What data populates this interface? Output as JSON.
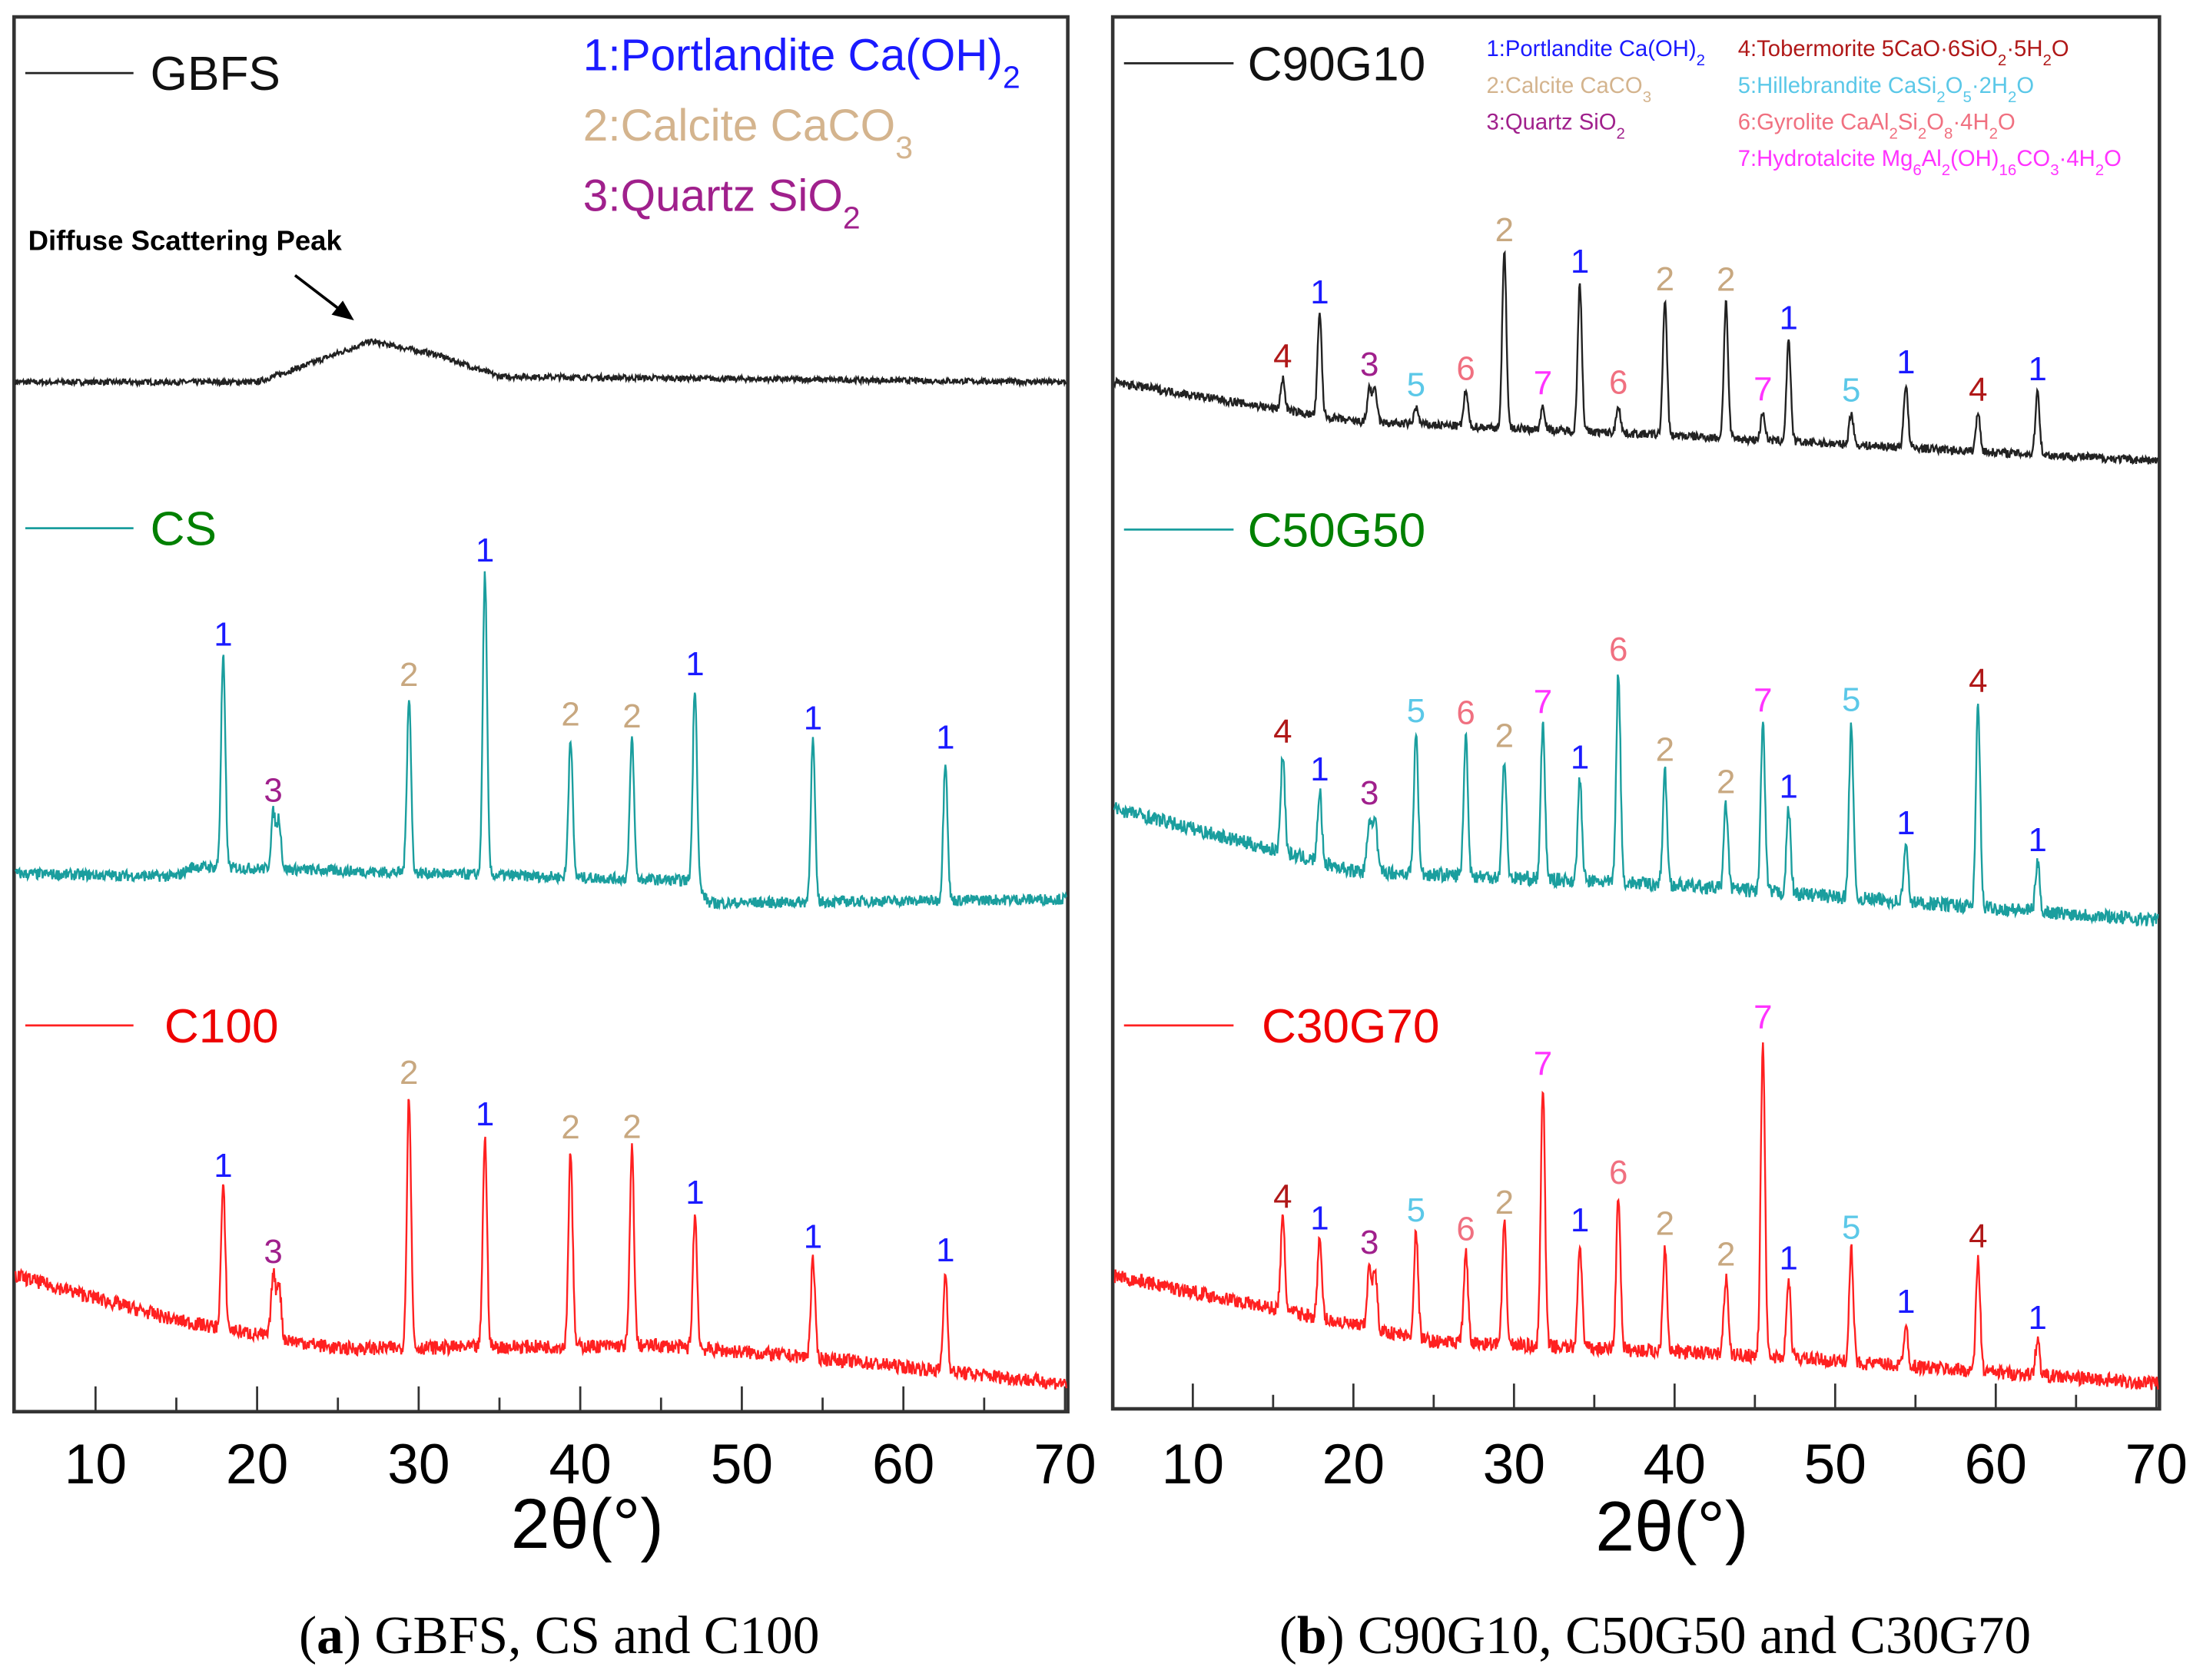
{
  "chart_data": [
    {
      "type": "line",
      "panel": "a",
      "caption_label": "a",
      "caption_text": ") GBFS, CS and C100",
      "xlabel": "2θ(°)",
      "ylabel": "",
      "xlim": [
        5,
        70
      ],
      "ylim_au": [
        0,
        993
      ],
      "xticks": [
        10,
        20,
        30,
        40,
        50,
        60,
        70
      ],
      "annotation": "Diffuse Scattering Peak",
      "phase_legend": [
        {
          "color": "#1a1aff",
          "segments": [
            [
              "1:Portlandite Ca(OH)",
              ""
            ],
            [
              "2",
              "sub"
            ]
          ]
        },
        {
          "color": "#d4b48e",
          "segments": [
            [
              "2:Calcite CaCO",
              ""
            ],
            [
              "3",
              "sub"
            ]
          ]
        },
        {
          "color": "#a0208c",
          "segments": [
            [
              "3:Quartz SiO",
              ""
            ],
            [
              "2",
              "sub"
            ]
          ]
        }
      ],
      "series": [
        {
          "name": "GBFS",
          "color": "#222222",
          "label_color": "#111111",
          "noise": 2,
          "baseline": [
            [
              5,
              733
            ],
            [
              20,
              733
            ],
            [
              23,
              745
            ],
            [
              27,
              762
            ],
            [
              31,
              753
            ],
            [
              35,
              737
            ],
            [
              70,
              733
            ]
          ],
          "peaks": []
        },
        {
          "name": "CS",
          "color": "#1a9e9e",
          "label_color": "#008000",
          "noise": 4,
          "baseline": [
            [
              5,
              383
            ],
            [
              15,
              381
            ],
            [
              16,
              388
            ],
            [
              47,
              378
            ],
            [
              48,
              362
            ],
            [
              70,
              365
            ]
          ],
          "peaks": [
            [
              17.9,
              150,
              1
            ],
            [
              21.0,
              40,
              3
            ],
            [
              29.4,
              125,
              2
            ],
            [
              34.1,
              215,
              1
            ],
            [
              39.4,
              100,
              2
            ],
            [
              43.2,
              100,
              2
            ],
            [
              47.1,
              140,
              1
            ],
            [
              54.4,
              115,
              1
            ],
            [
              62.6,
              100,
              1
            ]
          ]
        },
        {
          "name": "C100",
          "color": "#ff2020",
          "label_color": "#ee0000",
          "noise": 5,
          "baseline": [
            [
              5,
              97
            ],
            [
              15,
              65
            ],
            [
              25,
              45
            ],
            [
              45,
              47
            ],
            [
              55,
              38
            ],
            [
              70,
              20
            ]
          ],
          "peaks": [
            [
              17.9,
              100,
              1
            ],
            [
              21.0,
              45,
              3
            ],
            [
              29.4,
              180,
              2
            ],
            [
              34.1,
              150,
              1
            ],
            [
              39.4,
              140,
              2
            ],
            [
              43.2,
              140,
              2
            ],
            [
              47.1,
              95,
              1
            ],
            [
              54.4,
              70,
              1
            ],
            [
              62.6,
              70,
              1
            ]
          ]
        }
      ]
    },
    {
      "type": "line",
      "panel": "b",
      "caption_label": "b",
      "caption_text": ") C90G10, C50G50 and C30G70",
      "xlabel": "2θ(°)",
      "ylabel": "",
      "xlim": [
        5,
        70
      ],
      "ylim_au": [
        0,
        993
      ],
      "xticks": [
        10,
        20,
        30,
        40,
        50,
        60,
        70
      ],
      "phase_legend": [
        {
          "color": "#1a1aff",
          "segments": [
            [
              "1:Portlandite Ca(OH)",
              ""
            ],
            [
              "2",
              "sub"
            ]
          ]
        },
        {
          "color": "#d4b48e",
          "segments": [
            [
              "2:Calcite CaCO",
              ""
            ],
            [
              "3",
              "sub"
            ]
          ]
        },
        {
          "color": "#a0208c",
          "segments": [
            [
              "3:Quartz SiO",
              ""
            ],
            [
              "2",
              "sub"
            ]
          ]
        },
        {
          "color": "#b01818",
          "segments": [
            [
              "4:Tobermorite 5CaO·6SiO",
              ""
            ],
            [
              "2",
              "sub"
            ],
            [
              "·5H",
              ""
            ],
            [
              "2",
              "sub"
            ],
            [
              "O",
              ""
            ]
          ]
        },
        {
          "color": "#5bc8e8",
          "segments": [
            [
              "5:Hillebrandite CaSi",
              ""
            ],
            [
              "2",
              "sub"
            ],
            [
              "O",
              ""
            ],
            [
              "5",
              "sub"
            ],
            [
              "·2H",
              ""
            ],
            [
              "2",
              "sub"
            ],
            [
              "O",
              ""
            ]
          ]
        },
        {
          "color": "#f07080",
          "segments": [
            [
              "6:Gyrolite  CaAl",
              ""
            ],
            [
              "2",
              "sub"
            ],
            [
              "Si",
              ""
            ],
            [
              "2",
              "sub"
            ],
            [
              "O",
              ""
            ],
            [
              "8",
              "sub"
            ],
            [
              "·4H",
              ""
            ],
            [
              "2",
              "sub"
            ],
            [
              "O",
              ""
            ]
          ]
        },
        {
          "color": "#ff33ff",
          "segments": [
            [
              "7:Hydrotalcite Mg",
              ""
            ],
            [
              "6",
              "sub"
            ],
            [
              "Al",
              ""
            ],
            [
              "2",
              "sub"
            ],
            [
              "(OH)",
              ""
            ],
            [
              "16",
              "sub"
            ],
            [
              "CO",
              ""
            ],
            [
              "3",
              "sub"
            ],
            [
              "·4H",
              ""
            ],
            [
              "2",
              "sub"
            ],
            [
              "O",
              ""
            ]
          ]
        }
      ],
      "series": [
        {
          "name": "C90G10",
          "color": "#222222",
          "label_color": "#111111",
          "noise": 3,
          "baseline": [
            [
              5,
              733
            ],
            [
              20,
              705
            ],
            [
              40,
              695
            ],
            [
              70,
              677
            ]
          ],
          "peaks": [
            [
              15.6,
              22,
              4
            ],
            [
              17.9,
              72,
              1
            ],
            [
              21.0,
              25,
              3
            ],
            [
              23.9,
              12,
              5
            ],
            [
              27.0,
              25,
              6
            ],
            [
              29.4,
              125,
              2
            ],
            [
              31.8,
              17,
              7
            ],
            [
              34.1,
              105,
              1
            ],
            [
              36.5,
              20,
              6
            ],
            [
              39.4,
              95,
              2
            ],
            [
              43.2,
              97,
              2
            ],
            [
              45.5,
              20,
              7
            ],
            [
              47.1,
              72,
              1
            ],
            [
              51.0,
              23,
              5
            ],
            [
              54.4,
              45,
              1
            ],
            [
              58.9,
              28,
              4
            ],
            [
              62.6,
              45,
              1
            ]
          ]
        },
        {
          "name": "C50G50",
          "color": "#1a9e9e",
          "label_color": "#008000",
          "noise": 5,
          "baseline": [
            [
              5,
              430
            ],
            [
              20,
              385
            ],
            [
              40,
              375
            ],
            [
              70,
              350
            ]
          ],
          "peaks": [
            [
              15.6,
              70,
              4
            ],
            [
              17.9,
              50,
              1
            ],
            [
              21.0,
              40,
              3
            ],
            [
              23.9,
              100,
              5
            ],
            [
              27.0,
              100,
              6
            ],
            [
              29.4,
              85,
              2
            ],
            [
              31.8,
              110,
              7
            ],
            [
              34.1,
              72,
              1
            ],
            [
              36.5,
              150,
              6
            ],
            [
              39.4,
              80,
              2
            ],
            [
              43.2,
              60,
              2
            ],
            [
              45.5,
              120,
              7
            ],
            [
              47.1,
              60,
              1
            ],
            [
              51.0,
              125,
              5
            ],
            [
              54.4,
              40,
              1
            ],
            [
              58.9,
              145,
              4
            ],
            [
              62.6,
              35,
              1
            ]
          ]
        },
        {
          "name": "C30G70",
          "color": "#ff2020",
          "label_color": "#ee0000",
          "noise": 5,
          "baseline": [
            [
              5,
              97
            ],
            [
              25,
              50
            ],
            [
              45,
              40
            ],
            [
              70,
              20
            ]
          ],
          "peaks": [
            [
              15.6,
              65,
              4
            ],
            [
              17.9,
              55,
              1
            ],
            [
              21.0,
              45,
              3
            ],
            [
              23.9,
              75,
              5
            ],
            [
              27.0,
              65,
              6
            ],
            [
              29.4,
              85,
              2
            ],
            [
              31.8,
              185,
              7
            ],
            [
              34.1,
              75,
              1
            ],
            [
              36.5,
              110,
              6
            ],
            [
              39.4,
              75,
              2
            ],
            [
              43.2,
              55,
              2
            ],
            [
              45.5,
              225,
              7
            ],
            [
              47.1,
              55,
              1
            ],
            [
              51.0,
              80,
              5
            ],
            [
              54.4,
              30,
              1
            ],
            [
              58.9,
              80,
              4
            ],
            [
              62.6,
              25,
              1
            ]
          ]
        }
      ]
    }
  ],
  "label_colors": {
    "1": "#1a1aff",
    "2": "#c8a880",
    "3": "#a0208c",
    "4": "#b01818",
    "5": "#5bc8e8",
    "6": "#f07080",
    "7": "#ff33ff"
  }
}
